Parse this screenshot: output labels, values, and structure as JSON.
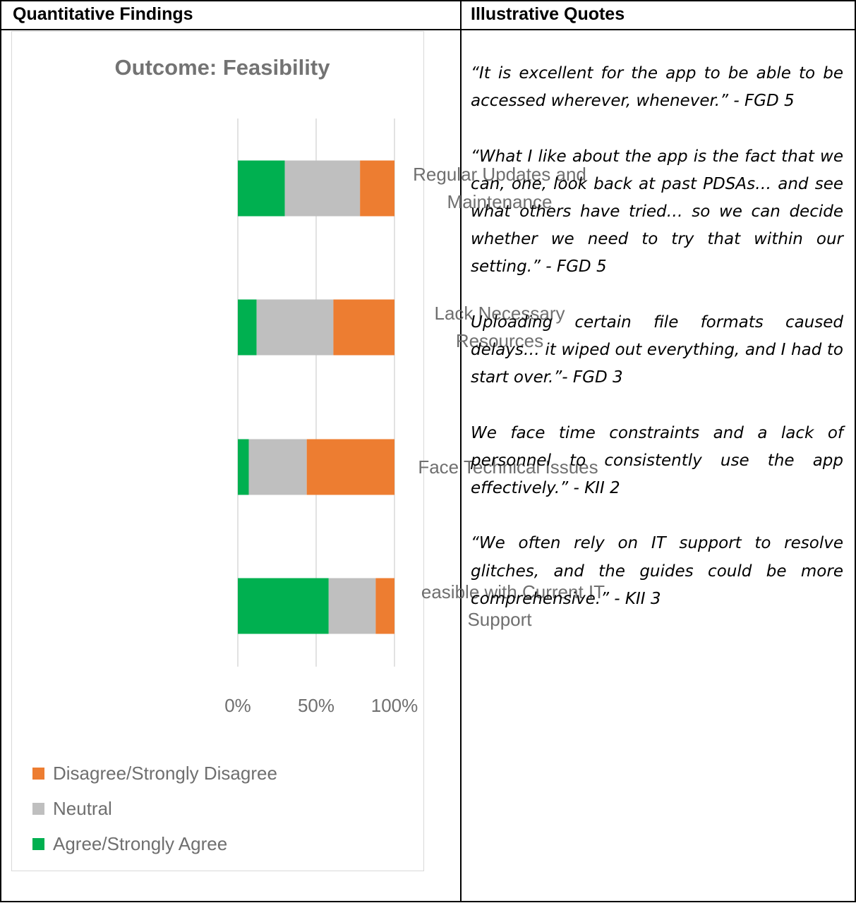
{
  "table": {
    "headers": [
      "Quantitative Findings",
      "Illustrative Quotes"
    ]
  },
  "chart_data": {
    "type": "bar",
    "orientation": "horizontal",
    "stacked": "percent",
    "title": "Outcome: Feasibility",
    "categories": [
      "Regular Updates and Maintenance",
      "Lack Necessary Resources",
      "Face Technical Issues",
      "easible with Current IT Support"
    ],
    "series": [
      {
        "name": "Agree/Strongly Agree",
        "color": "#00b050",
        "values": [
          30,
          12,
          7,
          58
        ]
      },
      {
        "name": "Neutral",
        "color": "#bfbfbf",
        "values": [
          48,
          49,
          37,
          30
        ]
      },
      {
        "name": "Disagree/Strongly Disagree",
        "color": "#ed7d31",
        "values": [
          22,
          39,
          56,
          12
        ]
      }
    ],
    "legend_order": [
      "Disagree/Strongly Disagree",
      "Neutral",
      "Agree/Strongly Agree"
    ],
    "xticks": [
      "0%",
      "50%",
      "100%"
    ],
    "xlim": [
      0,
      100
    ],
    "grid": true,
    "legend_position": "bottom-left"
  },
  "quotes": [
    "“It is excellent for the app to be able to be accessed wherever, whenever.” - FGD 5",
    "“What I like about the app is the fact that we can, one, look back at past PDSAs… and see what others have tried… so we can decide whether we need to try that within our setting.” - FGD 5",
    "Uploading certain file formats caused delays… it wiped out everything, and I had to start over.”- FGD 3",
    "We face time constraints and a lack of personnel to consistently use the app effectively.” - KII 2",
    "“We often rely on IT support to resolve glitches, and the guides could be more comprehensive.” - KII 3"
  ]
}
